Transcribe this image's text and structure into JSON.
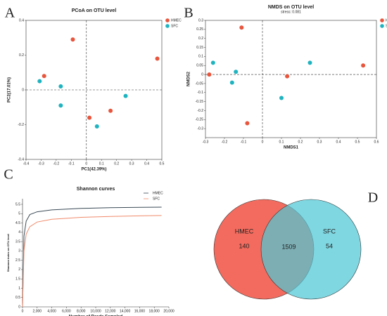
{
  "chart_data": [
    {
      "type": "scatter",
      "panel": "A",
      "title": "PCoA on OTU level",
      "xlabel": "PC1(42.39%)",
      "ylabel": "PC2(17.01%)",
      "xlim": [
        -0.4,
        0.5
      ],
      "xticks": [
        -0.4,
        -0.3,
        -0.2,
        -0.1,
        0,
        0.1,
        0.2,
        0.3,
        0.4,
        0.5
      ],
      "ylim": [
        -0.4,
        0.4
      ],
      "yticks": [
        -0.4,
        -0.2,
        0,
        0.2,
        0.4
      ],
      "zero_lines": true,
      "legend": "upper right",
      "series": [
        {
          "name": "HMEC",
          "color": "#e8553d",
          "x": [
            -0.28,
            -0.09,
            0.02,
            0.16,
            0.47
          ],
          "values": [
            0.08,
            0.29,
            -0.16,
            -0.12,
            0.18
          ]
        },
        {
          "name": "SFC",
          "color": "#1fb3c0",
          "x": [
            -0.31,
            -0.17,
            -0.17,
            0.07,
            0.26
          ],
          "values": [
            0.05,
            0.02,
            -0.09,
            -0.21,
            -0.035
          ]
        }
      ]
    },
    {
      "type": "scatter",
      "panel": "B",
      "title": "NMDS on OTU level",
      "subtitle": "stress: 0.081",
      "xlabel": "NMDS1",
      "ylabel": "NMDS2",
      "xlim": [
        -0.3,
        0.6
      ],
      "xticks": [
        -0.3,
        -0.2,
        -0.1,
        0,
        0.1,
        0.2,
        0.3,
        0.4,
        0.5,
        0.6
      ],
      "ylim": [
        -0.35,
        0.3
      ],
      "yticks": [
        -0.3,
        -0.25,
        -0.2,
        -0.15,
        -0.1,
        -0.05,
        0,
        0.05,
        0.1,
        0.15,
        0.2,
        0.25,
        0.3
      ],
      "zero_lines": true,
      "legend": "upper right",
      "series": [
        {
          "name": "HMEC",
          "color": "#e8553d",
          "x": [
            -0.28,
            -0.11,
            0.13,
            0.53,
            -0.08
          ],
          "values": [
            0.0,
            0.26,
            -0.01,
            0.05,
            -0.27
          ]
        },
        {
          "name": "SFC",
          "color": "#1fb3c0",
          "x": [
            -0.26,
            -0.14,
            -0.16,
            0.1,
            0.25
          ],
          "values": [
            0.065,
            0.015,
            -0.045,
            -0.13,
            0.065
          ]
        }
      ]
    },
    {
      "type": "line",
      "panel": "C",
      "title": "Shannon curves",
      "xlabel": "Number of Reads Sampled",
      "ylabel": "Shannon index on OTU level",
      "x": [
        0,
        200,
        500,
        1000,
        2000,
        4000,
        8000,
        12000,
        16000,
        19000
      ],
      "xlim": [
        0,
        20000
      ],
      "xticks": [
        0,
        {
          "value": 2000,
          "label": "2,000"
        },
        {
          "value": 4000,
          "label": "4,000"
        },
        {
          "value": 6000,
          "label": "6,000"
        },
        {
          "value": 8000,
          "label": "8,000"
        },
        {
          "value": 10000,
          "label": "10,000"
        },
        {
          "value": 12000,
          "label": "12,000"
        },
        {
          "value": 14000,
          "label": "14,000"
        },
        {
          "value": 16000,
          "label": "16,000"
        },
        {
          "value": 18000,
          "label": "18,000"
        },
        {
          "value": 20000,
          "label": "20,000"
        }
      ],
      "ylim": [
        0,
        5.8
      ],
      "yticks": [
        0,
        0.5,
        1,
        1.5,
        2,
        2.5,
        3,
        3.5,
        4,
        4.5,
        5,
        5.5
      ],
      "legend": "upper right",
      "series": [
        {
          "name": "HMEC",
          "color": "#3a4a55",
          "values": [
            0,
            3.8,
            4.6,
            4.95,
            5.1,
            5.2,
            5.28,
            5.32,
            5.34,
            5.35
          ]
        },
        {
          "name": "SFC",
          "color": "#f08a6a",
          "values": [
            0,
            3.0,
            3.9,
            4.3,
            4.55,
            4.7,
            4.8,
            4.85,
            4.88,
            4.9
          ]
        }
      ]
    },
    {
      "type": "venn",
      "panel": "D",
      "sets": [
        {
          "name": "HMEC",
          "color": "#f36b5e",
          "only": "140"
        },
        {
          "name": "SFC",
          "color": "#4ec8d6",
          "only": "54"
        }
      ],
      "shared": "1509"
    }
  ]
}
